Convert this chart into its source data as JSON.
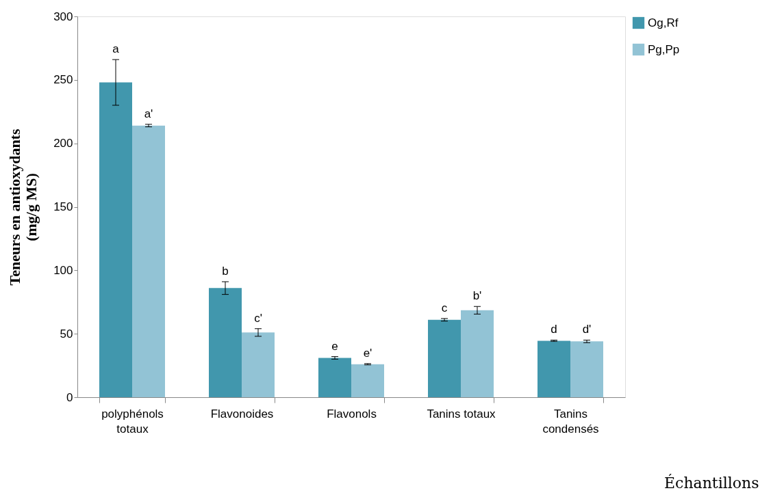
{
  "chart_data": {
    "type": "bar",
    "xlabel": "Échantillons",
    "ylabel": "Teneurs en antioxydants\n(mg/g MS)",
    "categories": [
      "polyphénols\ntotaux",
      "Flavonoides",
      "Flavonols",
      "Tanins totaux",
      "Tanins\ncondensés"
    ],
    "series": [
      {
        "name": "Og,Rf",
        "color": "#4197ad",
        "values": [
          248,
          86,
          31,
          61,
          44.5
        ],
        "errors": [
          18,
          5,
          1,
          1,
          0.5
        ]
      },
      {
        "name": "Pg,Pp",
        "color": "#92c3d5",
        "values": [
          214,
          51,
          26,
          68.5,
          44
        ],
        "errors": [
          1,
          3,
          0.5,
          3,
          1
        ]
      }
    ],
    "ylim": [
      0,
      300
    ],
    "yticks": [
      0,
      50,
      100,
      150,
      200,
      250,
      300
    ],
    "grid": false,
    "legend": "right",
    "annotations": [
      "a",
      "a'",
      "b",
      "c'",
      "e",
      "e'",
      "c",
      "b'",
      "d",
      "d'"
    ]
  }
}
